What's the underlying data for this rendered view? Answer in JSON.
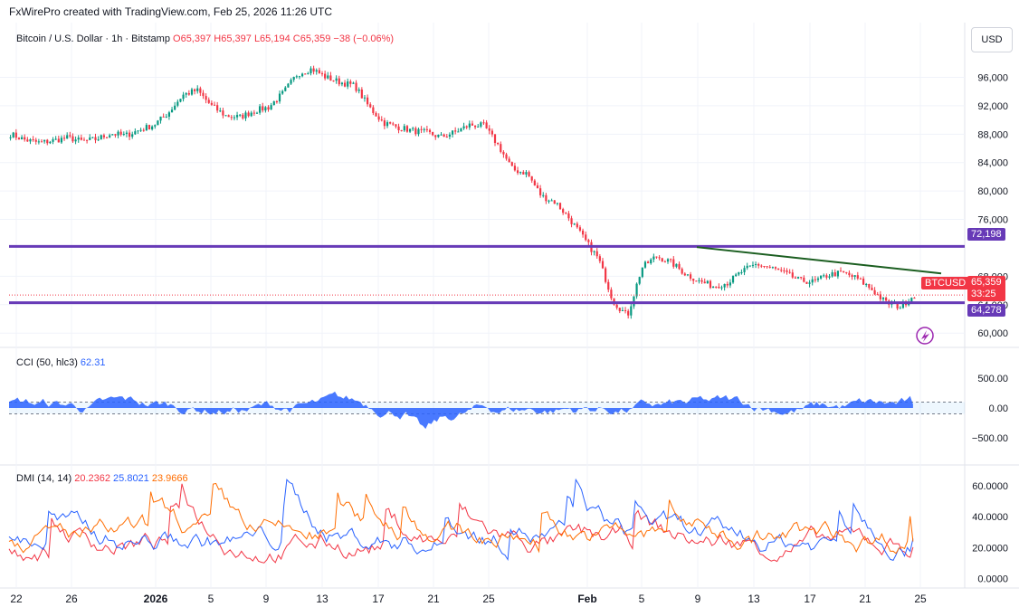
{
  "header": {
    "credit": "FxWirePro created with TradingView.com, Feb 25, 2026 11:26 UTC",
    "currency_button": "USD"
  },
  "legend": {
    "symbol": "Bitcoin / U.S. Dollar · 1h · Bitstamp",
    "open": "O65,397",
    "high": "H65,397",
    "low": "L65,194",
    "close": "C65,359",
    "change": "−38 (−0.06%)",
    "cci_label": "CCI (50, hlc3)",
    "cci_value": "62.31",
    "dmi_label": "DMI (14, 14)",
    "dmi_plus": "20.2362",
    "dmi_minus": "25.8021",
    "adx": "23.9666"
  },
  "price_tags": {
    "resistance": "72,198",
    "symbol": "BTCUSD",
    "last": "65,359",
    "countdown": "33:25",
    "support": "64,278"
  },
  "colors": {
    "up": "#089981",
    "down": "#f23645",
    "level_line": "#673ab7",
    "trendline": "#1b5e20",
    "cci": "#2962ff",
    "dmi_plus": "#2962ff",
    "dmi_minus": "#f23645",
    "adx": "#ff6d00",
    "text": "#131722",
    "grid": "#f0f3fa"
  },
  "chart_data": [
    {
      "type": "candlestick",
      "title": "Bitcoin / U.S. Dollar · 1h · Bitstamp",
      "x_tick_labels": [
        "22",
        "26",
        "2026",
        "5",
        "9",
        "13",
        "17",
        "21",
        "25",
        "Feb",
        "5",
        "9",
        "13",
        "17",
        "21",
        "25"
      ],
      "y_tick_labels": [
        "96,000",
        "92,000",
        "88,000",
        "84,000",
        "80,000",
        "76,000",
        "68,000",
        "64,000",
        "60,000"
      ],
      "y_range": [
        58500,
        99500
      ],
      "close_path_approx": [
        88000,
        87200,
        86800,
        87100,
        87500,
        87000,
        87300,
        88100,
        87800,
        88600,
        89300,
        91000,
        93500,
        94200,
        92000,
        90600,
        90400,
        91300,
        91800,
        93800,
        96500,
        97200,
        96000,
        95300,
        94800,
        91800,
        89600,
        89000,
        88500,
        88200,
        87600,
        88300,
        89300,
        89200,
        86400,
        83000,
        82500,
        79300,
        78400,
        76000,
        73200,
        70400,
        64500,
        62400,
        69200,
        70800,
        70000,
        68400,
        67300,
        66600,
        67100,
        68700,
        69700,
        69200,
        68400,
        67400,
        67200,
        68200,
        68500,
        67700,
        66200,
        64300,
        63700,
        65400
      ],
      "horizontal_levels": [
        72198,
        64278
      ],
      "trendline": [
        [
          72100
        ],
        [
          68400
        ]
      ],
      "last_price": 65359
    },
    {
      "type": "line",
      "title": "CCI (50, hlc3)",
      "y_tick_labels": [
        "500.00",
        "0.00",
        "−500.00"
      ],
      "y_range": [
        -900,
        900
      ],
      "bands": [
        100,
        -100
      ],
      "last_value": 62.31
    },
    {
      "type": "line",
      "title": "DMI (14, 14)",
      "y_tick_labels": [
        "60.0000",
        "40.0000",
        "20.0000",
        "0.0000"
      ],
      "y_range": [
        -5,
        70
      ],
      "series": [
        {
          "name": "+DI",
          "last_value": 20.2362
        },
        {
          "name": "−DI",
          "last_value": 25.8021
        },
        {
          "name": "ADX",
          "last_value": 23.9666
        }
      ]
    }
  ]
}
